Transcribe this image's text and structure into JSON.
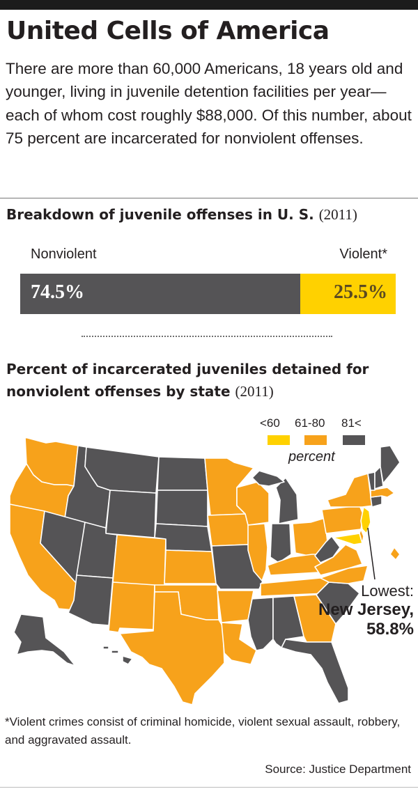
{
  "headline": "United Cells of America",
  "intro": "There are more than 60,000 Americans, 18 years old and younger, living in juvenile detention facilities per year—each of whom cost roughly $88,000. Of this number, about 75 percent are incarcerated for nonviolent offenses.",
  "chart_data": [
    {
      "type": "bar",
      "title": "Breakdown of juvenile offenses in U. S.",
      "year": "(2011)",
      "categories": [
        "Nonviolent",
        "Violent*"
      ],
      "values": [
        74.5,
        25.5
      ],
      "value_labels": [
        "74.5%",
        "25.5%"
      ],
      "stacked": true,
      "colors": [
        "#555456",
        "#ffd100"
      ]
    },
    {
      "type": "heatmap",
      "title": "Percent of incarcerated juveniles detained for nonviolent offenses by state",
      "year": "(2011)",
      "legend": {
        "bins": [
          "<60",
          "61-80",
          "81<"
        ],
        "colors": [
          "#ffd100",
          "#f7a21b",
          "#555456"
        ],
        "unit": "percent",
        "placement": "top-right"
      },
      "categories": {
        "lt60": [
          "New Jersey"
        ],
        "61to80": [
          "Washington",
          "Oregon",
          "California",
          "Colorado",
          "New Mexico",
          "Texas",
          "Oklahoma",
          "Kansas",
          "Minnesota",
          "Iowa",
          "Wisconsin",
          "Illinois",
          "Arkansas",
          "Louisiana",
          "Kentucky",
          "Tennessee",
          "Ohio",
          "Pennsylvania",
          "New York",
          "Virginia",
          "North Carolina",
          "Georgia",
          "Massachusetts",
          "Delaware",
          "District of Columbia"
        ],
        "gt81": [
          "Idaho",
          "Montana",
          "Wyoming",
          "Nevada",
          "Utah",
          "Arizona",
          "North Dakota",
          "South Dakota",
          "Nebraska",
          "Missouri",
          "Mississippi",
          "Alabama",
          "Florida",
          "South Carolina",
          "Indiana",
          "Michigan",
          "West Virginia",
          "Maine",
          "Vermont",
          "New Hampshire",
          "Connecticut",
          "Alaska",
          "Hawaii"
        ]
      },
      "annotation": {
        "line1": "Lowest:",
        "line2": "New Jersey,",
        "line3": "58.8%",
        "state": "New Jersey",
        "value": 58.8
      }
    }
  ],
  "footnote": "*Violent crimes consist of criminal homicide, violent sexual assault, robbery, and aggravated assault.",
  "source": "Source: Justice Department"
}
